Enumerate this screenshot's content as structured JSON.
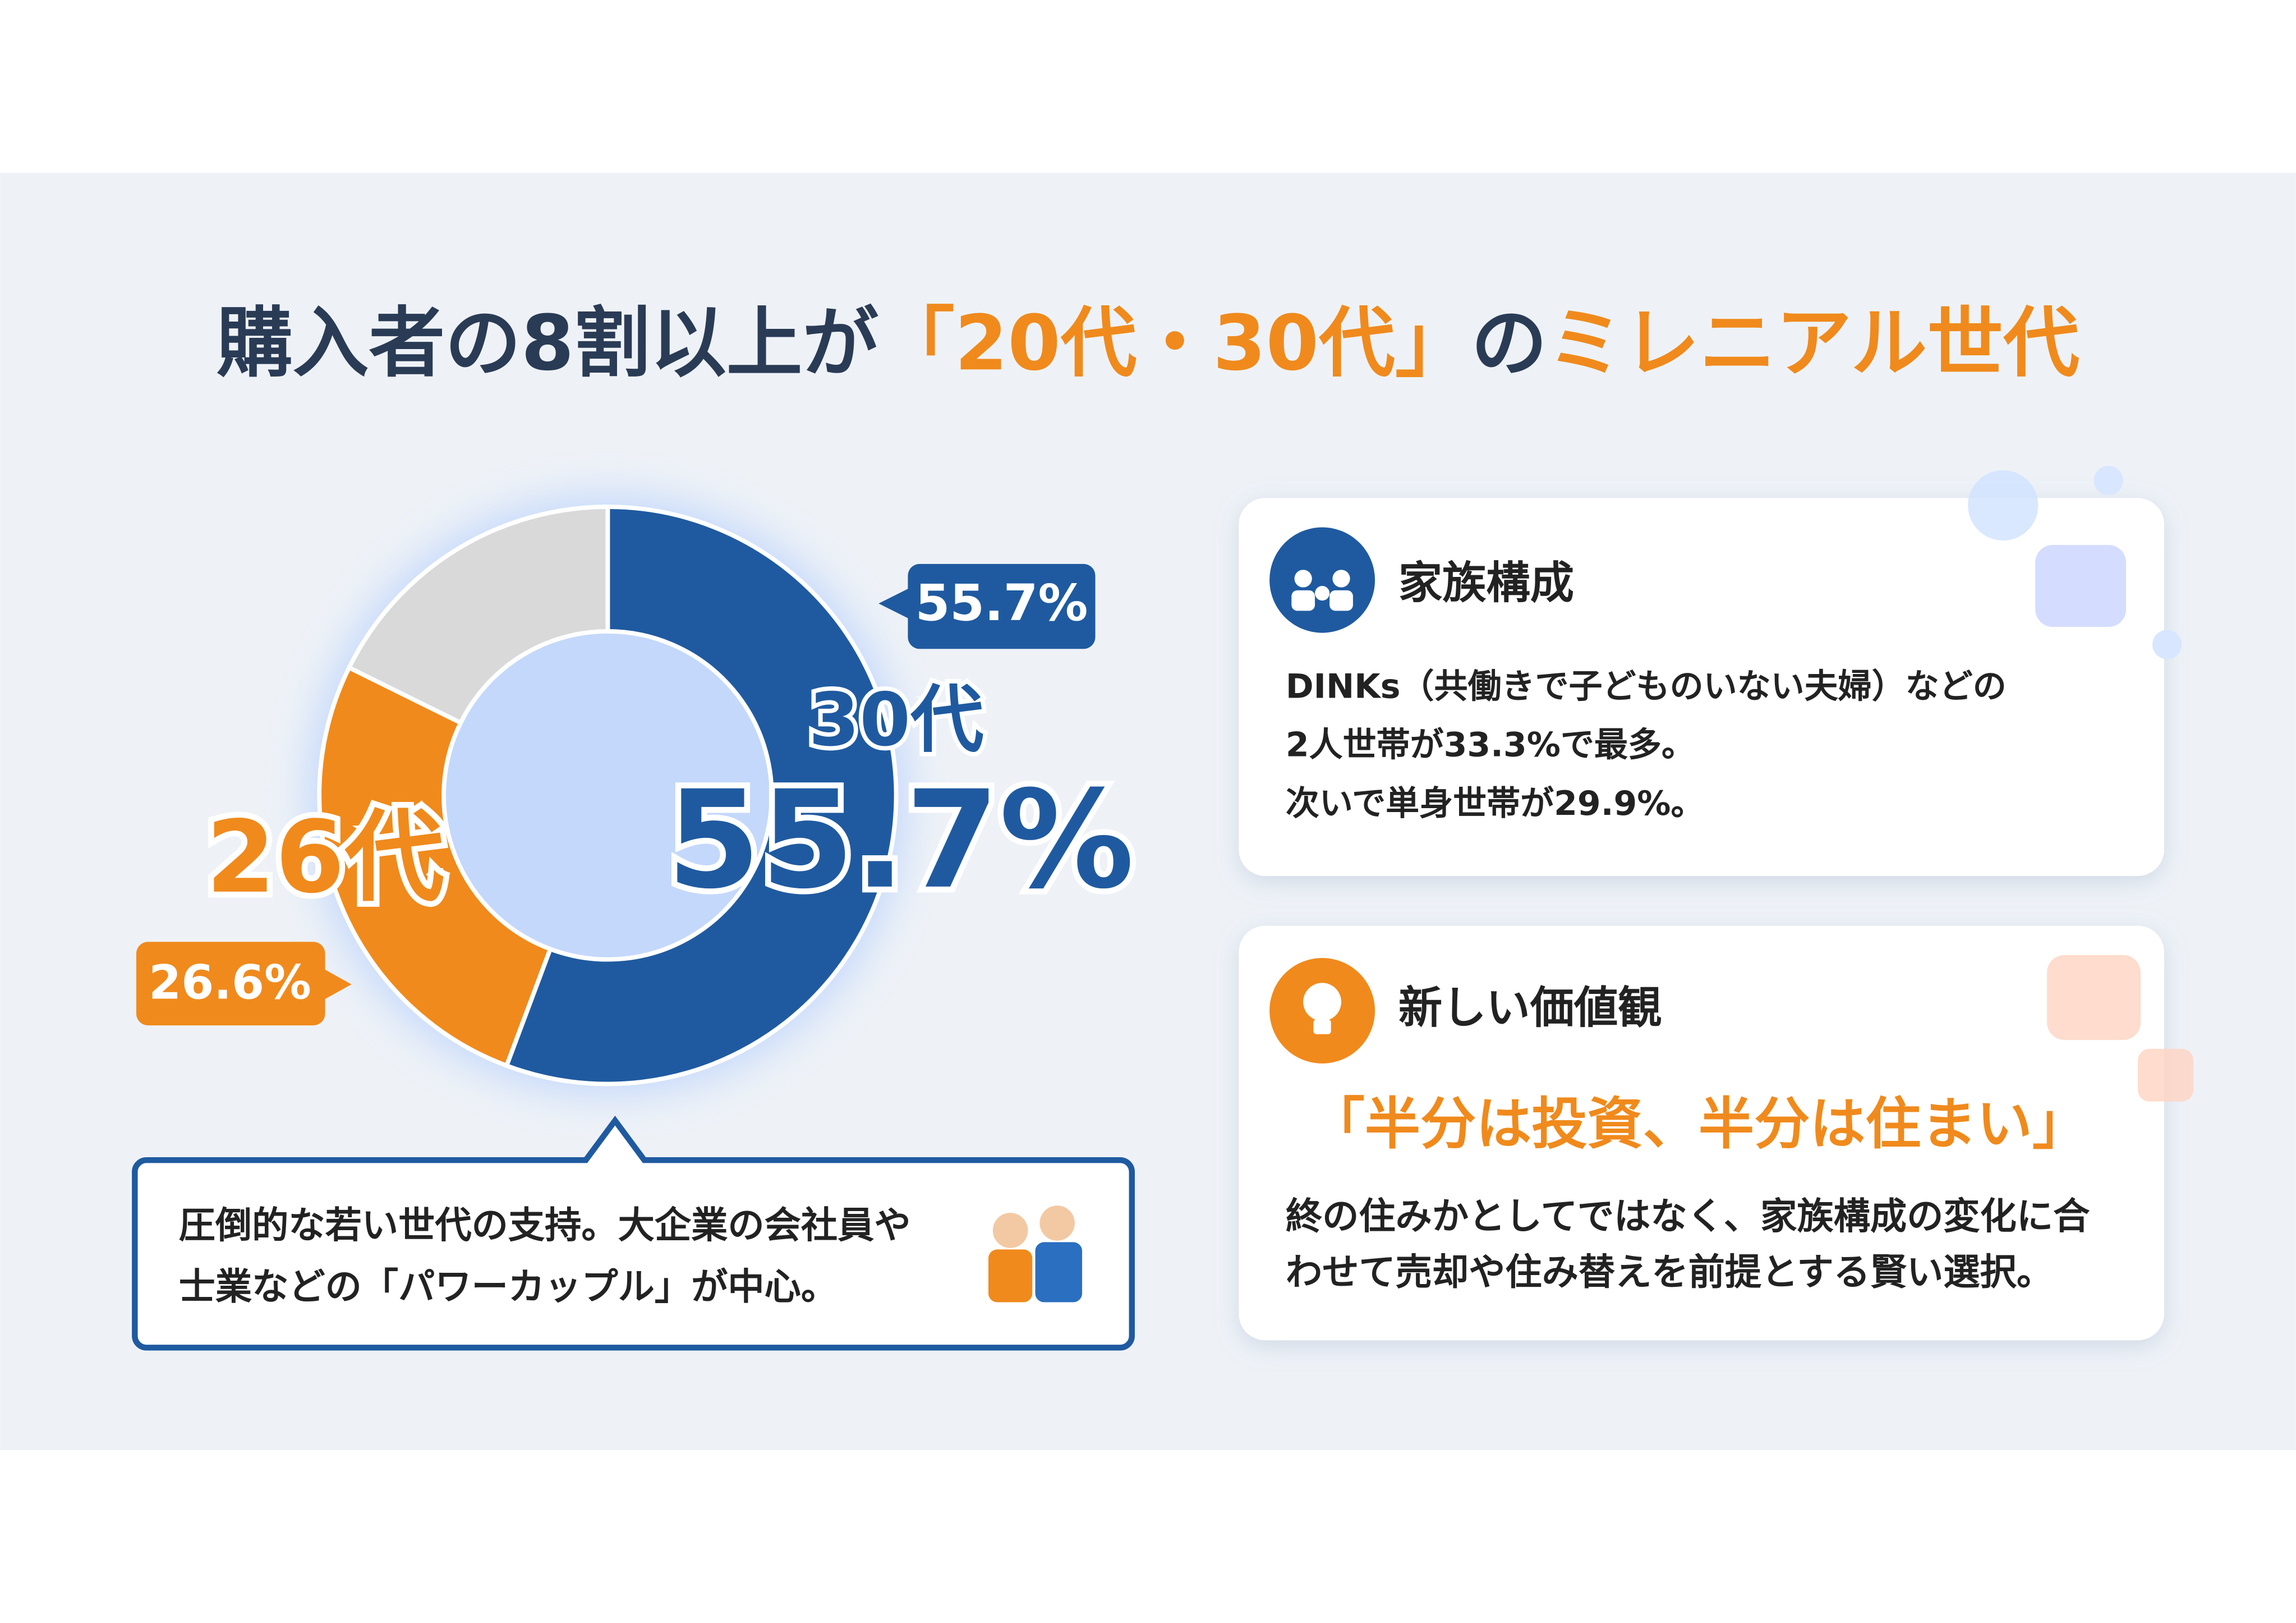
{
  "chart_data": {
    "type": "pie",
    "donut": true,
    "title": [
      "購入者の8割以上が",
      "「20代・30代」",
      "の",
      "ミレニアル世代"
    ],
    "categories": [
      "30代",
      "26代",
      null
    ],
    "values": [
      55.7,
      26.6,
      17.7
    ],
    "value_labels": [
      "55.7%",
      "26.6%",
      null
    ],
    "colors": [
      "#1f5aa0",
      "#f08a1c",
      "#d9d9d9"
    ]
  },
  "callout": {
    "lines": [
      "圧倒的な若い世代の支持。大企業の会社員や",
      "士業などの「パワーカップル」が中心。"
    ]
  },
  "cards": [
    {
      "heading": "家族構成",
      "lines": [
        "DINKs（共働きで子どものいない夫婦）などの",
        "2人世帯が33.3%で最多。",
        "次いで単身世帯が29.9%。"
      ]
    },
    {
      "heading": "新しい価値観",
      "quote": "「半分は投資、半分は住まい」",
      "lines": [
        "終の住みかとしてではなく、家族構成の変化に合",
        "わせて売却や住み替えを前提とする賢い選択。"
      ]
    }
  ]
}
